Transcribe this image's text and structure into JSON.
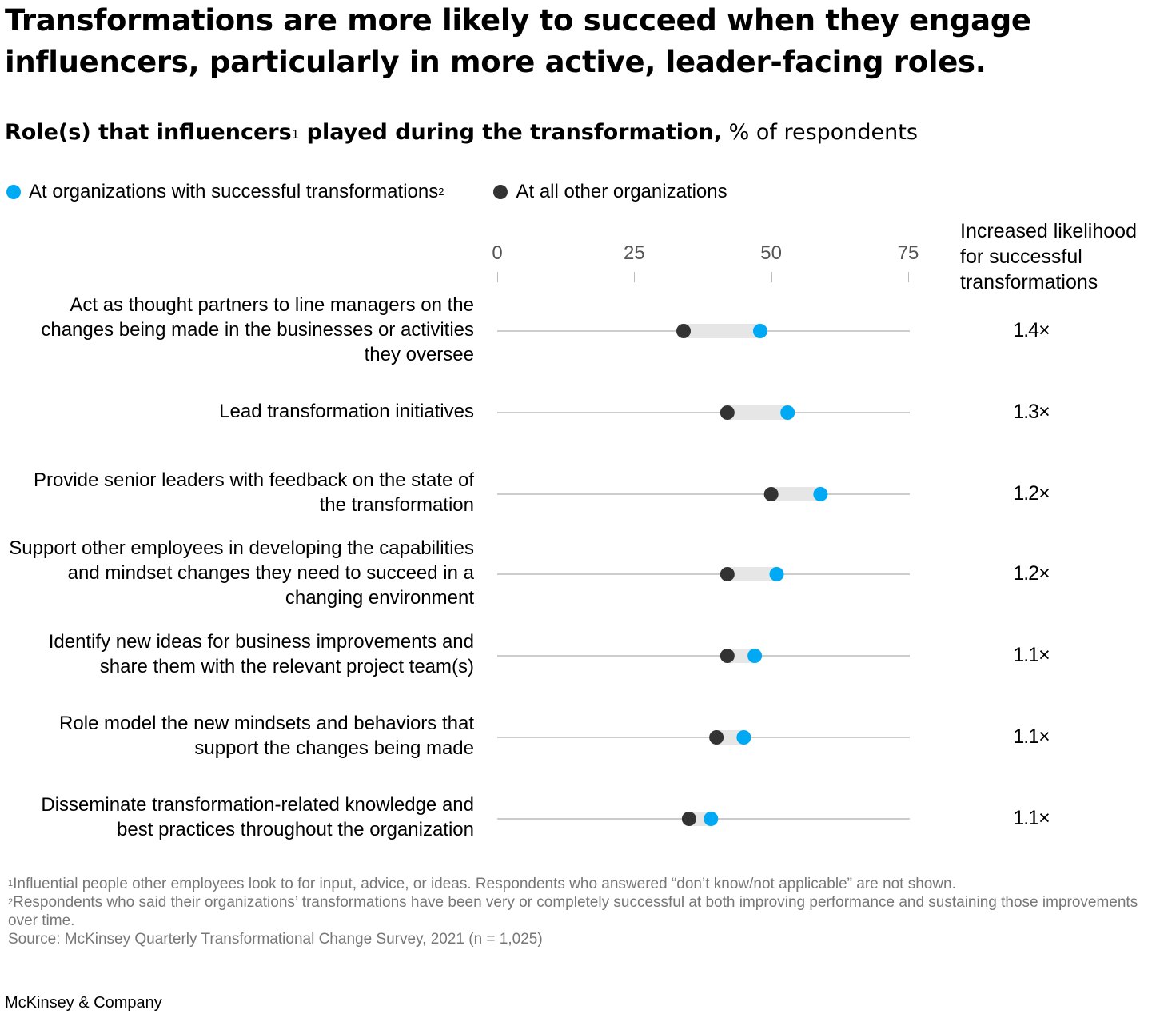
{
  "title": "Transformations are more likely to succeed when they engage influencers, particularly in more active, leader-facing roles.",
  "subtitle": {
    "bold_part1": "Role(s) that influencers",
    "sup": "1",
    "bold_part2": " played during the transformation,",
    "regular": " % of respondents"
  },
  "legend": {
    "successful": "At organizations with successful transformations",
    "successful_sup": "2",
    "other": "At all other organizations"
  },
  "colors": {
    "successful": "#00a9f4",
    "other": "#333333",
    "range_bar": "#e6e6e6",
    "axis_line": "#999999"
  },
  "likelihood_header": "Increased likelihood for successful transformations",
  "chart_data": {
    "type": "dot",
    "x_ticks": [
      0,
      25,
      50,
      75
    ],
    "xlim": [
      0,
      75
    ],
    "categories": [
      "Act as thought partners to line managers on the changes being made in the businesses or activities they oversee",
      "Lead transformation initiatives",
      "Provide senior leaders with feedback on the state of the transformation",
      "Support other employees in developing the capabilities and mindset changes they need to succeed in a changing environment",
      "Identify new ideas for business improvements and share them with the relevant project team(s)",
      "Role model the new mindsets and behaviors that support the changes being made",
      "Disseminate transformation-related knowledge and best practices throughout the organization"
    ],
    "series": [
      {
        "name": "At organizations with successful transformations",
        "values": [
          48,
          53,
          59,
          51,
          47,
          45,
          39
        ]
      },
      {
        "name": "At all other organizations",
        "values": [
          34,
          42,
          50,
          42,
          42,
          40,
          35
        ]
      }
    ],
    "multipliers": [
      "1.4×",
      "1.3×",
      "1.2×",
      "1.2×",
      "1.1×",
      "1.1×",
      "1.1×"
    ]
  },
  "footnotes": {
    "f1_sup": "1",
    "f1": "Influential people other employees look to for input, advice, or ideas. Respondents who answered “don’t know/not applicable” are not shown.",
    "f2_sup": "2",
    "f2": "Respondents who said their organizations’ transformations have been very or completely successful at both improving performance and sustaining those improvements over time.",
    "source": "Source: McKinsey Quarterly Transformational Change Survey, 2021 (n = 1,025)"
  },
  "brand": "McKinsey & Company"
}
